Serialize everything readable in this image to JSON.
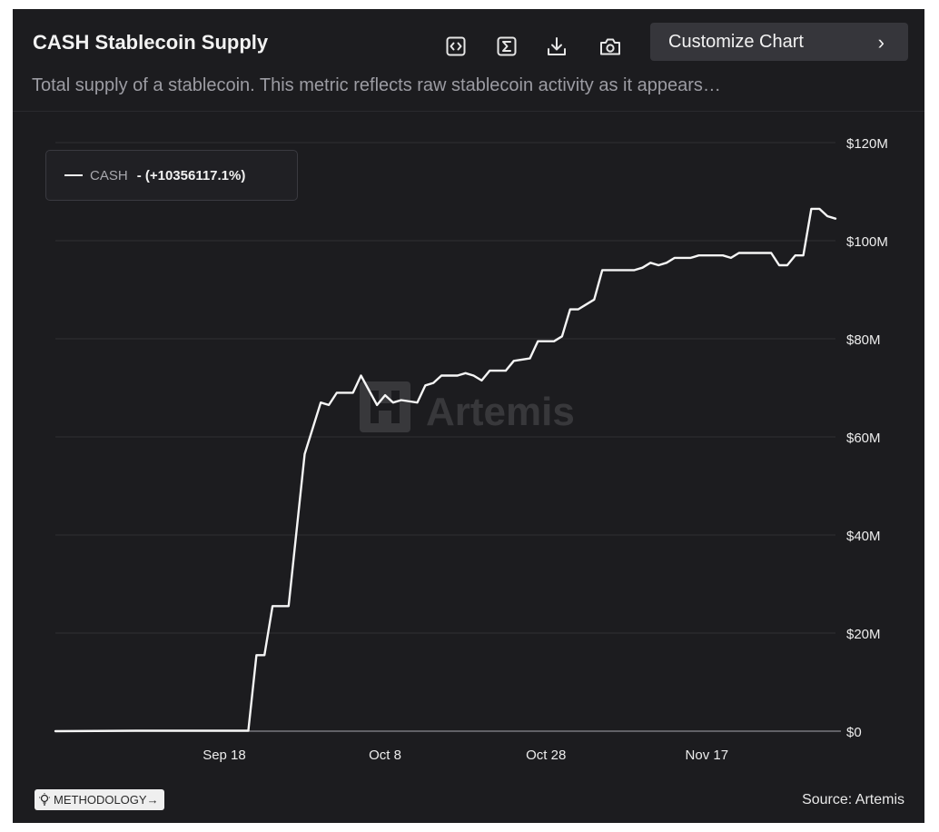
{
  "header": {
    "title": "CASH Stablecoin Supply",
    "subtitle": "Total supply of a stablecoin. This metric reflects raw stablecoin activity as it appears…",
    "toolbar_icons": [
      "embed-icon",
      "sigma-icon",
      "download-icon",
      "camera-icon"
    ],
    "customize_label": "Customize Chart",
    "customize_chevron": "›"
  },
  "legend": {
    "name": "CASH",
    "change": "- (+10356117.1%)"
  },
  "watermark": "Artemis",
  "footer": {
    "methodology_label": "METHODOLOGY→",
    "source": "Source: Artemis"
  },
  "colors": {
    "background": "#1c1c1f",
    "line": "#f5f5f5",
    "grid": "#2f2f33",
    "axis_text": "#ededed"
  },
  "chart_data": {
    "type": "line",
    "title": "CASH Stablecoin Supply",
    "xlabel": "",
    "ylabel": "",
    "grid": true,
    "legend_position": "top-left",
    "x_range": [
      "2024-08-28",
      "2024-12-03"
    ],
    "ylim": [
      0,
      120
    ],
    "y_unit": "USD millions",
    "y_ticks": [
      0,
      20,
      40,
      60,
      80,
      100,
      120
    ],
    "y_tick_labels": [
      "$0",
      "$20M",
      "$40M",
      "$60M",
      "$80M",
      "$100M",
      "$120M"
    ],
    "x_ticks": [
      "2024-09-18",
      "2024-10-08",
      "2024-10-28",
      "2024-11-17"
    ],
    "x_tick_labels": [
      "Sep 18",
      "Oct 8",
      "Oct 28",
      "Nov 17"
    ],
    "series": [
      {
        "name": "CASH",
        "color": "#f5f5f5",
        "points": [
          [
            "2024-08-28",
            0.0
          ],
          [
            "2024-09-07",
            0.1
          ],
          [
            "2024-09-21",
            0.1
          ],
          [
            "2024-09-21",
            0.2
          ],
          [
            "2024-09-22",
            15.5
          ],
          [
            "2024-09-23",
            15.5
          ],
          [
            "2024-09-24",
            25.5
          ],
          [
            "2024-09-26",
            25.5
          ],
          [
            "2024-09-28",
            56.5
          ],
          [
            "2024-09-30",
            67.0
          ],
          [
            "2024-10-01",
            66.5
          ],
          [
            "2024-10-02",
            69.0
          ],
          [
            "2024-10-04",
            69.0
          ],
          [
            "2024-10-05",
            72.5
          ],
          [
            "2024-10-07",
            66.5
          ],
          [
            "2024-10-08",
            68.5
          ],
          [
            "2024-10-09",
            67.0
          ],
          [
            "2024-10-10",
            67.5
          ],
          [
            "2024-10-12",
            67.0
          ],
          [
            "2024-10-13",
            70.5
          ],
          [
            "2024-10-14",
            71.0
          ],
          [
            "2024-10-15",
            72.5
          ],
          [
            "2024-10-17",
            72.5
          ],
          [
            "2024-10-18",
            73.0
          ],
          [
            "2024-10-19",
            72.5
          ],
          [
            "2024-10-20",
            71.5
          ],
          [
            "2024-10-21",
            73.5
          ],
          [
            "2024-10-23",
            73.5
          ],
          [
            "2024-10-24",
            75.5
          ],
          [
            "2024-10-26",
            76.0
          ],
          [
            "2024-10-27",
            79.5
          ],
          [
            "2024-10-29",
            79.5
          ],
          [
            "2024-10-30",
            80.5
          ],
          [
            "2024-10-31",
            86.0
          ],
          [
            "2024-11-01",
            86.0
          ],
          [
            "2024-11-02",
            87.0
          ],
          [
            "2024-11-03",
            88.0
          ],
          [
            "2024-11-04",
            94.0
          ],
          [
            "2024-11-08",
            94.0
          ],
          [
            "2024-11-09",
            94.5
          ],
          [
            "2024-11-10",
            95.5
          ],
          [
            "2024-11-11",
            95.0
          ],
          [
            "2024-11-12",
            95.5
          ],
          [
            "2024-11-13",
            96.5
          ],
          [
            "2024-11-15",
            96.5
          ],
          [
            "2024-11-16",
            97.0
          ],
          [
            "2024-11-19",
            97.0
          ],
          [
            "2024-11-20",
            96.5
          ],
          [
            "2024-11-21",
            97.5
          ],
          [
            "2024-11-25",
            97.5
          ],
          [
            "2024-11-26",
            95.0
          ],
          [
            "2024-11-27",
            95.0
          ],
          [
            "2024-11-28",
            97.0
          ],
          [
            "2024-11-29",
            97.0
          ],
          [
            "2024-11-30",
            106.5
          ],
          [
            "2024-12-01",
            106.5
          ],
          [
            "2024-12-02",
            105.0
          ],
          [
            "2024-12-03",
            104.5
          ]
        ]
      }
    ]
  }
}
